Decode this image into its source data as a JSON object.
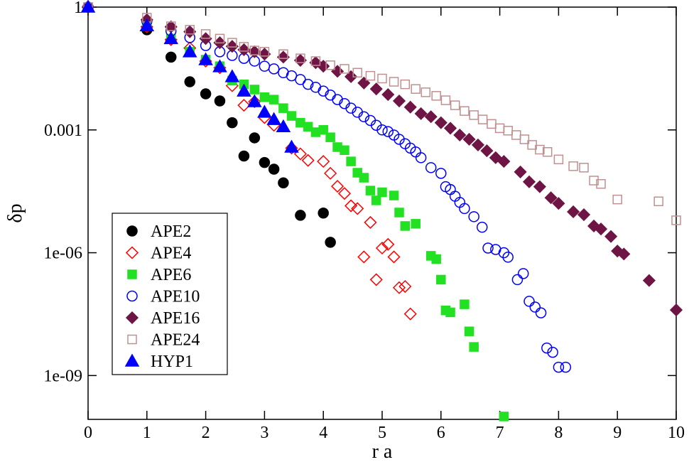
{
  "chart_data": {
    "type": "scatter",
    "x_label": "r a",
    "y_label": "δp",
    "log_y": true,
    "xlim": [
      0,
      10
    ],
    "ylim": [
      8.5e-11,
      1
    ],
    "xticks": [
      0,
      1,
      2,
      3,
      4,
      5,
      6,
      7,
      8,
      9,
      10
    ],
    "yticks": [
      1,
      0.001,
      {
        "value": 1e-06,
        "label": "1e-06"
      },
      {
        "value": 1e-09,
        "label": "1e-09"
      }
    ],
    "legend": "lower-left",
    "series": [
      {
        "name": "APE2",
        "color": "#000000",
        "marker": "circle",
        "filled": true,
        "x": [
          0,
          1,
          1.41,
          1.73,
          2,
          2.24,
          2.45,
          2.65,
          2.83,
          3,
          3.16,
          3.32,
          3.61,
          4,
          4.12
        ],
        "values": [
          1,
          0.28,
          0.06,
          0.015,
          0.0076,
          0.0051,
          0.0015,
          0.00023,
          0.00064,
          0.00016,
          0.00011,
          5.1e-05,
          8.2e-06,
          9.3e-06,
          1.8e-06
        ]
      },
      {
        "name": "APE4",
        "color": "#ff0000",
        "marker": "diamond",
        "filled": false,
        "x": [
          0,
          1,
          1.41,
          1.73,
          2,
          2.24,
          2.45,
          2.65,
          2.83,
          3,
          3.16,
          3.46,
          3.61,
          3.74,
          4,
          4.12,
          4.24,
          4.36,
          4.47,
          4.58,
          4.8,
          4.69,
          4.9,
          5,
          5.1,
          5.2,
          5.29,
          5.39,
          5.48
        ],
        "values": [
          1,
          0.33,
          0.16,
          0.1,
          0.048,
          0.033,
          0.012,
          0.004,
          0.0049,
          0.002,
          0.0013,
          0.00036,
          0.00026,
          0.00018,
          0.00017,
          8.7e-05,
          4.2e-05,
          2.8e-05,
          1.4e-05,
          1.2e-05,
          5.5e-06,
          7.9e-07,
          2.2e-07,
          1.3e-06,
          1.6e-06,
          7.9e-07,
          1.4e-07,
          1.5e-07,
          3.2e-08
        ]
      },
      {
        "name": "APE6",
        "color": "#22e022",
        "marker": "square",
        "filled": true,
        "x": [
          0,
          1,
          1.41,
          1.73,
          2,
          2.24,
          2.45,
          2.65,
          2.83,
          3,
          3.16,
          3.32,
          3.46,
          3.61,
          3.74,
          3.87,
          4,
          4.12,
          4.24,
          4.36,
          4.47,
          4.58,
          4.69,
          4.8,
          4.9,
          5,
          5.2,
          5.29,
          5.39,
          5.57,
          5.83,
          5.92,
          6,
          6.08,
          6.16,
          6.4,
          6.48,
          6.56,
          7.07
        ],
        "values": [
          1,
          0.35,
          0.17,
          0.081,
          0.052,
          0.036,
          0.016,
          0.013,
          0.0097,
          0.0063,
          0.0055,
          0.0034,
          0.0022,
          0.0015,
          0.0012,
          0.00088,
          0.001,
          0.00066,
          0.00038,
          0.00032,
          0.00017,
          9e-05,
          6.8e-05,
          3.3e-05,
          1.9e-05,
          3e-05,
          2.5e-05,
          9.6e-06,
          4.5e-06,
          5.1e-06,
          8.4e-07,
          7e-07,
          2.2e-07,
          3.9e-08,
          3.5e-08,
          5.5e-08,
          1.2e-08,
          5e-09,
          1e-10
        ]
      },
      {
        "name": "APE10",
        "color": "#0000ff",
        "marker": "circle",
        "filled": false,
        "x": [
          0,
          1,
          1.41,
          1.73,
          2,
          2.24,
          2.45,
          2.65,
          2.83,
          3,
          3.16,
          3.32,
          3.46,
          3.61,
          3.74,
          3.87,
          4,
          4.12,
          4.24,
          4.36,
          4.47,
          4.58,
          4.69,
          4.8,
          4.9,
          5,
          5.1,
          5.2,
          5.29,
          5.39,
          5.48,
          5.57,
          5.66,
          5.83,
          6,
          6.08,
          6.16,
          6.24,
          6.32,
          6.4,
          6.56,
          6.7,
          6.8,
          6.93,
          7.07,
          7.14,
          7.3,
          7.4,
          7.5,
          7.6,
          7.7,
          7.8,
          7.9,
          8,
          8.12
        ],
        "values": [
          1,
          0.45,
          0.26,
          0.18,
          0.115,
          0.081,
          0.066,
          0.056,
          0.048,
          0.036,
          0.031,
          0.025,
          0.021,
          0.017,
          0.013,
          0.011,
          0.0089,
          0.0071,
          0.0055,
          0.0044,
          0.0034,
          0.0027,
          0.0021,
          0.0017,
          0.0013,
          0.001,
          0.00091,
          0.00075,
          0.00059,
          0.00046,
          0.00036,
          0.00029,
          0.00021,
          0.00012,
          8.7e-05,
          4.1e-05,
          3.5e-05,
          2.4e-05,
          1.7e-05,
          1.2e-05,
          7.6e-06,
          4.2e-06,
          1.3e-06,
          1.2e-06,
          1e-06,
          7.8e-07,
          2.2e-07,
          3.1e-07,
          6.5e-08,
          4.7e-08,
          3.4e-08,
          4.7e-09,
          3.7e-09,
          1.6e-09,
          1.6e-09
        ]
      },
      {
        "name": "APE16",
        "color": "#6e1545",
        "marker": "diamond",
        "filled": true,
        "x": [
          0,
          1,
          1.41,
          1.73,
          2,
          2.24,
          2.45,
          2.65,
          2.83,
          3,
          3.32,
          3.61,
          3.87,
          4,
          4.24,
          4.47,
          4.69,
          4.9,
          5.1,
          5.29,
          5.48,
          5.66,
          5.83,
          6,
          6.16,
          6.32,
          6.48,
          6.63,
          6.78,
          6.93,
          7.07,
          7.35,
          7.5,
          7.68,
          7.87,
          8,
          8.25,
          8.43,
          8.6,
          8.72,
          8.89,
          9,
          9.11,
          9.54,
          10
        ],
        "values": [
          1,
          0.49,
          0.33,
          0.25,
          0.17,
          0.135,
          0.11,
          0.091,
          0.081,
          0.071,
          0.06,
          0.05,
          0.044,
          0.036,
          0.027,
          0.02,
          0.014,
          0.01,
          0.0073,
          0.0051,
          0.0036,
          0.0025,
          0.0021,
          0.0015,
          0.0011,
          0.00075,
          0.00059,
          0.00043,
          0.00031,
          0.00021,
          0.00017,
          9.4e-05,
          5.4e-05,
          4.1e-05,
          2.2e-05,
          1.6e-05,
          1e-05,
          8.5e-06,
          4.5e-06,
          3.8e-06,
          2.5e-06,
          1.1e-06,
          9.3e-07,
          2.1e-07,
          4e-08
        ]
      },
      {
        "name": "APE24",
        "color": "#c09090",
        "marker": "square",
        "filled": false,
        "x": [
          0,
          1,
          1.41,
          1.73,
          2,
          2.24,
          2.45,
          2.65,
          2.83,
          3,
          3.32,
          3.61,
          3.87,
          4.12,
          4.36,
          4.58,
          4.8,
          5,
          5.2,
          5.39,
          5.57,
          5.74,
          5.92,
          6.08,
          6.24,
          6.4,
          6.56,
          6.71,
          6.86,
          7,
          7.14,
          7.28,
          7.42,
          7.55,
          7.68,
          7.81,
          8,
          8.25,
          8.43,
          8.6,
          8.72,
          9,
          9.7,
          10
        ],
        "values": [
          1,
          0.55,
          0.34,
          0.28,
          0.22,
          0.17,
          0.135,
          0.107,
          0.087,
          0.081,
          0.071,
          0.056,
          0.048,
          0.038,
          0.031,
          0.025,
          0.021,
          0.018,
          0.015,
          0.013,
          0.01,
          0.0083,
          0.0068,
          0.0053,
          0.004,
          0.0029,
          0.0023,
          0.0018,
          0.0014,
          0.0011,
          0.00096,
          0.00075,
          0.00059,
          0.00043,
          0.00033,
          0.00029,
          0.00019,
          0.00013,
          0.00012,
          5.8e-05,
          4.8e-05,
          2e-05,
          1.8e-05,
          6.2e-06
        ]
      },
      {
        "name": "HYP1",
        "color": "#0000ff",
        "marker": "triangle",
        "filled": true,
        "x": [
          0,
          1,
          1.41,
          1.73,
          2,
          2.24,
          2.45,
          2.65,
          2.83,
          3,
          3.16,
          3.32,
          3.46
        ],
        "values": [
          1,
          0.35,
          0.17,
          0.081,
          0.052,
          0.035,
          0.02,
          0.0089,
          0.0049,
          0.0027,
          0.0018,
          0.0012,
          0.00038
        ]
      }
    ]
  }
}
